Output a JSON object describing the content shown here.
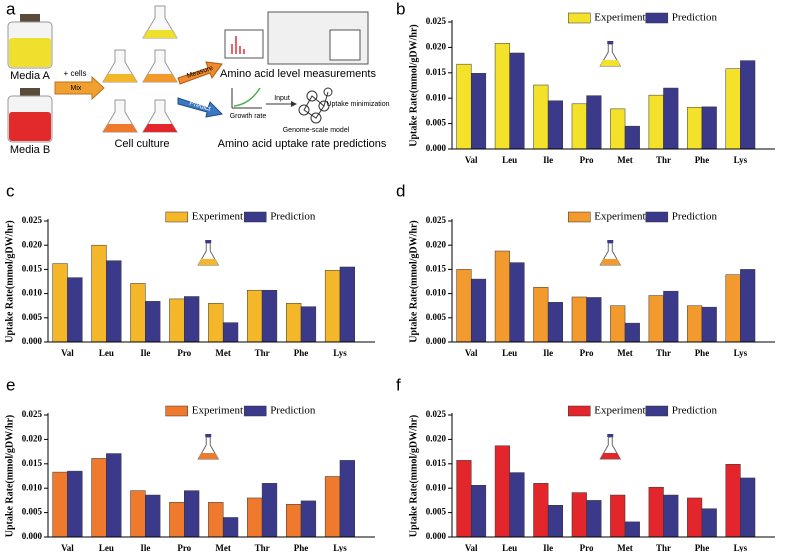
{
  "diagram": {
    "panel": "a",
    "media_a": "Media A",
    "media_b": "Media B",
    "add_cells": "+ cells",
    "mix": "Mix",
    "cell_culture": "Cell culture",
    "measure": "Measure",
    "predict": "Predict",
    "measurements": "Amino acid level measurements",
    "input": "Input",
    "growth_rate": "Growth rate",
    "uptake_minimization": "Uptake minimization",
    "genome_model": "Genome-scale model",
    "predictions": "Amino acid uptake rate predictions"
  },
  "chart_data": [
    {
      "type": "bar",
      "panel": "b",
      "y_label": "Uptake Rate(mmol/gDW/hr)",
      "legend": "top",
      "categories": [
        "Val",
        "Leu",
        "Ile",
        "Pro",
        "Met",
        "Thr",
        "Phe",
        "Lys"
      ],
      "ylim": [
        0,
        0.025
      ],
      "yticks": [
        {
          "value": 0,
          "label": "0.000"
        },
        {
          "value": 0.005,
          "label": "0.005"
        },
        {
          "value": 0.01,
          "label": "0.010"
        },
        {
          "value": 0.015,
          "label": "0.015"
        },
        {
          "value": 0.02,
          "label": "0.020"
        },
        {
          "value": 0.025,
          "label": "0.025"
        }
      ],
      "series": [
        {
          "name": "Experiment",
          "color": "#f3e12a",
          "values": [
            0.0167,
            0.0208,
            0.0126,
            0.0089,
            0.0079,
            0.0106,
            0.0082,
            0.0158
          ]
        },
        {
          "name": "Prediction",
          "color": "#3b3a8a",
          "values": [
            0.0149,
            0.0189,
            0.0095,
            0.0105,
            0.0045,
            0.012,
            0.0083,
            0.0174
          ]
        }
      ]
    },
    {
      "type": "bar",
      "panel": "c",
      "y_label": "Uptake Rate(mmol/gDW/hr)",
      "legend": "top",
      "categories": [
        "Val",
        "Leu",
        "Ile",
        "Pro",
        "Met",
        "Thr",
        "Phe",
        "Lys"
      ],
      "ylim": [
        0,
        0.025
      ],
      "yticks": [
        {
          "value": 0,
          "label": "0.000"
        },
        {
          "value": 0.005,
          "label": "0.005"
        },
        {
          "value": 0.01,
          "label": "0.010"
        },
        {
          "value": 0.015,
          "label": "0.015"
        },
        {
          "value": 0.02,
          "label": "0.020"
        },
        {
          "value": 0.025,
          "label": "0.025"
        }
      ],
      "series": [
        {
          "name": "Experiment",
          "color": "#f5b72a",
          "values": [
            0.0162,
            0.02,
            0.0121,
            0.0089,
            0.008,
            0.0107,
            0.008,
            0.0148
          ]
        },
        {
          "name": "Prediction",
          "color": "#3b3a8a",
          "values": [
            0.0133,
            0.0168,
            0.0084,
            0.0094,
            0.004,
            0.0107,
            0.0073,
            0.0155
          ]
        }
      ]
    },
    {
      "type": "bar",
      "panel": "d",
      "y_label": "Uptake Rate(mmol/gDW/hr)",
      "legend": "top",
      "categories": [
        "Val",
        "Leu",
        "Ile",
        "Pro",
        "Met",
        "Thr",
        "Phe",
        "Lys"
      ],
      "ylim": [
        0,
        0.025
      ],
      "yticks": [
        {
          "value": 0,
          "label": "0.000"
        },
        {
          "value": 0.005,
          "label": "0.005"
        },
        {
          "value": 0.01,
          "label": "0.010"
        },
        {
          "value": 0.015,
          "label": "0.015"
        },
        {
          "value": 0.02,
          "label": "0.020"
        },
        {
          "value": 0.025,
          "label": "0.025"
        }
      ],
      "series": [
        {
          "name": "Experiment",
          "color": "#f29a2e",
          "values": [
            0.015,
            0.0188,
            0.0113,
            0.0093,
            0.0075,
            0.0096,
            0.0075,
            0.0139
          ]
        },
        {
          "name": "Prediction",
          "color": "#3b3a8a",
          "values": [
            0.013,
            0.0164,
            0.0082,
            0.0092,
            0.0039,
            0.0105,
            0.0072,
            0.015
          ]
        }
      ]
    },
    {
      "type": "bar",
      "panel": "e",
      "y_label": "Uptake Rate(mmol/gDW/hr)",
      "legend": "top",
      "categories": [
        "Val",
        "Leu",
        "Ile",
        "Pro",
        "Met",
        "Thr",
        "Phe",
        "Lys"
      ],
      "ylim": [
        0,
        0.025
      ],
      "yticks": [
        {
          "value": 0,
          "label": "0.000"
        },
        {
          "value": 0.005,
          "label": "0.005"
        },
        {
          "value": 0.01,
          "label": "0.010"
        },
        {
          "value": 0.015,
          "label": "0.015"
        },
        {
          "value": 0.02,
          "label": "0.020"
        },
        {
          "value": 0.025,
          "label": "0.025"
        }
      ],
      "series": [
        {
          "name": "Experiment",
          "color": "#ef7a2d",
          "values": [
            0.0133,
            0.0161,
            0.0095,
            0.0071,
            0.0071,
            0.008,
            0.0067,
            0.0124
          ]
        },
        {
          "name": "Prediction",
          "color": "#3b3a8a",
          "values": [
            0.0135,
            0.0171,
            0.0086,
            0.0095,
            0.004,
            0.011,
            0.0074,
            0.0157
          ]
        }
      ]
    },
    {
      "type": "bar",
      "panel": "f",
      "y_label": "Uptake Rate(mmol/gDW/hr)",
      "legend": "top",
      "categories": [
        "Val",
        "Leu",
        "Ile",
        "Pro",
        "Met",
        "Thr",
        "Phe",
        "Lys"
      ],
      "ylim": [
        0,
        0.025
      ],
      "yticks": [
        {
          "value": 0,
          "label": "0.000"
        },
        {
          "value": 0.005,
          "label": "0.005"
        },
        {
          "value": 0.01,
          "label": "0.010"
        },
        {
          "value": 0.015,
          "label": "0.015"
        },
        {
          "value": 0.02,
          "label": "0.020"
        },
        {
          "value": 0.025,
          "label": "0.025"
        }
      ],
      "series": [
        {
          "name": "Experiment",
          "color": "#e3262b",
          "values": [
            0.0157,
            0.0187,
            0.011,
            0.0091,
            0.0086,
            0.0102,
            0.008,
            0.0149
          ]
        },
        {
          "name": "Prediction",
          "color": "#3b3a8a",
          "values": [
            0.0106,
            0.0132,
            0.0065,
            0.0075,
            0.0031,
            0.0086,
            0.0058,
            0.0121
          ]
        }
      ]
    }
  ]
}
